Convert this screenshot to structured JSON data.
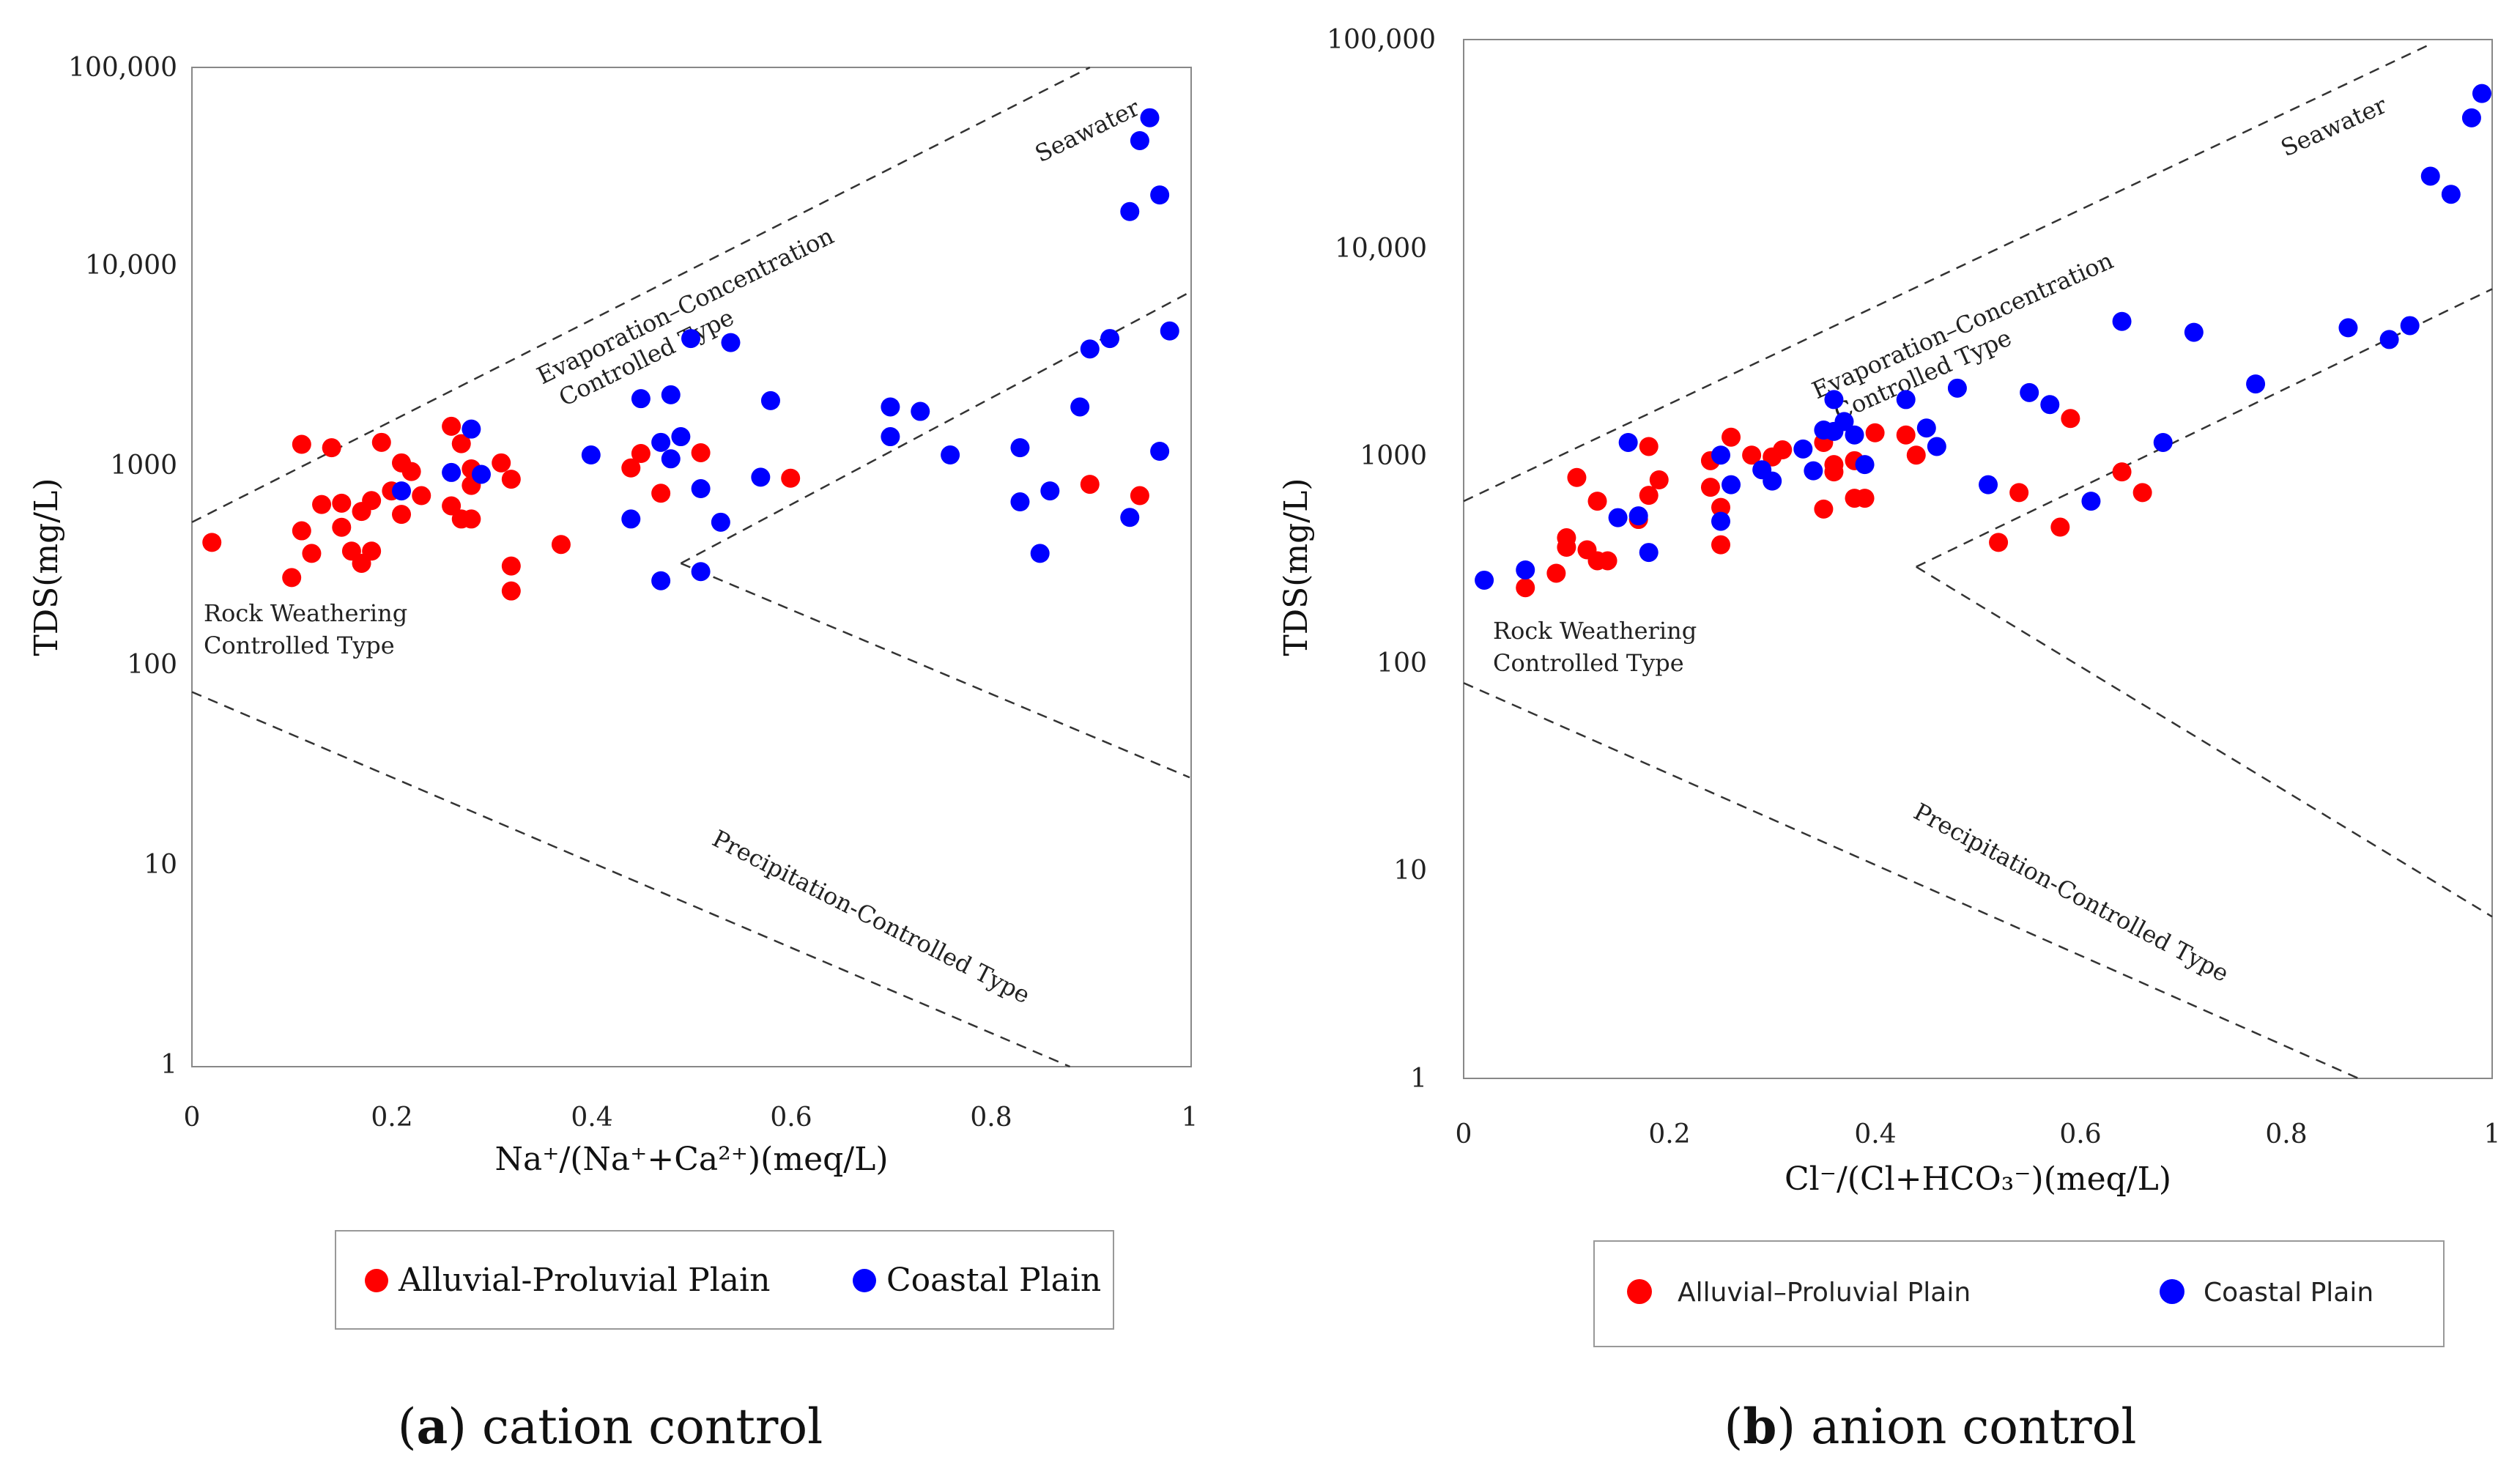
{
  "chart_data": [
    {
      "type": "scatter",
      "title": "cation control",
      "caption": {
        "letter": "a",
        "text": " cation control"
      },
      "xlabel": "Na⁺/(Na⁺+Ca²⁺)(meq/L)",
      "ylabel": "TDS(mg/L)",
      "xlim": [
        0,
        1
      ],
      "ylim": [
        1,
        100000
      ],
      "yscale": "log",
      "grid": false,
      "x_ticks": [
        "0",
        "0.2",
        "0.4",
        "0.6",
        "0.8",
        "1"
      ],
      "y_ticks": [
        "1",
        "10",
        "100",
        "1000",
        "10,000",
        "100,000"
      ],
      "annotations": [
        "Seawater",
        "Evaporation–Concentration",
        "Controlled Type",
        "Rock Weathering",
        "Controlled Type",
        "Precipitation-Controlled Type"
      ],
      "legend": {
        "style": "serif",
        "entries": [
          "Alluvial-Proluvial Plain",
          "Coastal Plain"
        ]
      },
      "boundaries": [
        {
          "name": "evaporation-upper",
          "from": [
            0,
            530
          ],
          "to": [
            0.9,
            100000
          ]
        },
        {
          "name": "evaporation-lower",
          "from": [
            0.49,
            330
          ],
          "to": [
            1,
            7500
          ]
        },
        {
          "name": "rock-lower",
          "from": [
            0,
            75
          ],
          "to": [
            0.88,
            1
          ]
        },
        {
          "name": "precipitation-upper",
          "from": [
            0.49,
            330
          ],
          "to": [
            1,
            28
          ]
        }
      ],
      "series": [
        {
          "name": "Alluvial-Proluvial Plain",
          "color": "#ff0000",
          "points": [
            [
              0.02,
              420
            ],
            [
              0.1,
              280
            ],
            [
              0.11,
              480
            ],
            [
              0.12,
              370
            ],
            [
              0.13,
              650
            ],
            [
              0.14,
              1250
            ],
            [
              0.15,
              660
            ],
            [
              0.15,
              500
            ],
            [
              0.16,
              380
            ],
            [
              0.17,
              330
            ],
            [
              0.17,
              600
            ],
            [
              0.18,
              380
            ],
            [
              0.18,
              680
            ],
            [
              0.19,
              1330
            ],
            [
              0.2,
              760
            ],
            [
              0.21,
              1050
            ],
            [
              0.21,
              580
            ],
            [
              0.22,
              950
            ],
            [
              0.23,
              720
            ],
            [
              0.26,
              1600
            ],
            [
              0.26,
              640
            ],
            [
              0.27,
              550
            ],
            [
              0.27,
              1310
            ],
            [
              0.28,
              980
            ],
            [
              0.28,
              810
            ],
            [
              0.28,
              550
            ],
            [
              0.31,
              1050
            ],
            [
              0.32,
              870
            ],
            [
              0.32,
              320
            ],
            [
              0.32,
              240
            ],
            [
              0.37,
              410
            ],
            [
              0.44,
              990
            ],
            [
              0.45,
              1170
            ],
            [
              0.47,
              740
            ],
            [
              0.51,
              1180
            ],
            [
              0.6,
              880
            ],
            [
              0.9,
              820
            ],
            [
              0.95,
              720
            ],
            [
              0.11,
              1300
            ]
          ]
        },
        {
          "name": "Coastal Plain",
          "color": "#0000ff",
          "points": [
            [
              0.21,
              760
            ],
            [
              0.26,
              940
            ],
            [
              0.28,
              1550
            ],
            [
              0.29,
              920
            ],
            [
              0.4,
              1150
            ],
            [
              0.44,
              550
            ],
            [
              0.45,
              2200
            ],
            [
              0.47,
              270
            ],
            [
              0.47,
              1330
            ],
            [
              0.48,
              1100
            ],
            [
              0.48,
              2300
            ],
            [
              0.49,
              1420
            ],
            [
              0.5,
              4400
            ],
            [
              0.51,
              780
            ],
            [
              0.51,
              300
            ],
            [
              0.53,
              530
            ],
            [
              0.54,
              4200
            ],
            [
              0.57,
              890
            ],
            [
              0.58,
              2150
            ],
            [
              0.7,
              1420
            ],
            [
              0.7,
              2000
            ],
            [
              0.73,
              1900
            ],
            [
              0.76,
              1150
            ],
            [
              0.83,
              1250
            ],
            [
              0.83,
              670
            ],
            [
              0.85,
              370
            ],
            [
              0.86,
              760
            ],
            [
              0.89,
              2000
            ],
            [
              0.9,
              3900
            ],
            [
              0.92,
              4400
            ],
            [
              0.94,
              19000
            ],
            [
              0.94,
              560
            ],
            [
              0.95,
              43000
            ],
            [
              0.96,
              56000
            ],
            [
              0.97,
              23000
            ],
            [
              0.97,
              1200
            ],
            [
              0.98,
              4800
            ]
          ]
        }
      ]
    },
    {
      "type": "scatter",
      "title": "anion control",
      "caption": {
        "letter": "b",
        "text": " anion control"
      },
      "xlabel": "Cl⁻/(Cl+HCO₃⁻)(meq/L)",
      "ylabel": "TDS(mg/L)",
      "xlim": [
        0,
        1
      ],
      "ylim": [
        1,
        100000
      ],
      "yscale": "log",
      "grid": false,
      "x_ticks": [
        "0",
        "0.2",
        "0.4",
        "0.6",
        "0.8",
        "1"
      ],
      "y_ticks": [
        "1",
        "10",
        "100",
        "1000",
        "10,000",
        "100,000"
      ],
      "annotations": [
        "Seawater",
        "Evaporation–Concentration",
        "Controlled Type",
        "Rock Weathering",
        "Controlled Type",
        "Precipitation-Controlled Type"
      ],
      "legend": {
        "style": "sans",
        "entries": [
          "Alluvial–Proluvial Plain",
          "Coastal Plain"
        ]
      },
      "boundaries": [
        {
          "name": "evaporation-upper",
          "from": [
            0,
            600
          ],
          "to": [
            0.94,
            95000
          ]
        },
        {
          "name": "evaporation-lower",
          "from": [
            0.44,
            290
          ],
          "to": [
            1,
            6300
          ]
        },
        {
          "name": "rock-lower",
          "from": [
            0,
            80
          ],
          "to": [
            0.87,
            1
          ]
        },
        {
          "name": "precipitation-upper",
          "from": [
            0.44,
            290
          ],
          "to": [
            1,
            6
          ]
        }
      ],
      "series": [
        {
          "name": "Alluvial–Proluvial Plain",
          "color": "#ff0000",
          "points": [
            [
              0.06,
              230
            ],
            [
              0.09,
              270
            ],
            [
              0.1,
              360
            ],
            [
              0.1,
              400
            ],
            [
              0.11,
              780
            ],
            [
              0.12,
              350
            ],
            [
              0.13,
              310
            ],
            [
              0.13,
              600
            ],
            [
              0.14,
              310
            ],
            [
              0.17,
              490
            ],
            [
              0.18,
              640
            ],
            [
              0.18,
              1100
            ],
            [
              0.19,
              760
            ],
            [
              0.24,
              700
            ],
            [
              0.24,
              940
            ],
            [
              0.25,
              560
            ],
            [
              0.25,
              370
            ],
            [
              0.26,
              1220
            ],
            [
              0.28,
              1000
            ],
            [
              0.3,
              980
            ],
            [
              0.31,
              1060
            ],
            [
              0.35,
              550
            ],
            [
              0.35,
              1150
            ],
            [
              0.36,
              830
            ],
            [
              0.36,
              900
            ],
            [
              0.38,
              620
            ],
            [
              0.38,
              940
            ],
            [
              0.39,
              620
            ],
            [
              0.4,
              1280
            ],
            [
              0.43,
              1250
            ],
            [
              0.44,
              1000
            ],
            [
              0.52,
              380
            ],
            [
              0.54,
              660
            ],
            [
              0.58,
              450
            ],
            [
              0.59,
              1500
            ],
            [
              0.64,
              830
            ],
            [
              0.66,
              660
            ]
          ]
        },
        {
          "name": "Coastal Plain",
          "color": "#0000ff",
          "points": [
            [
              0.02,
              250
            ],
            [
              0.06,
              280
            ],
            [
              0.15,
              500
            ],
            [
              0.16,
              1150
            ],
            [
              0.17,
              510
            ],
            [
              0.18,
              340
            ],
            [
              0.25,
              480
            ],
            [
              0.25,
              1000
            ],
            [
              0.26,
              720
            ],
            [
              0.29,
              850
            ],
            [
              0.3,
              750
            ],
            [
              0.33,
              1070
            ],
            [
              0.34,
              840
            ],
            [
              0.35,
              1320
            ],
            [
              0.36,
              1850
            ],
            [
              0.36,
              1300
            ],
            [
              0.37,
              1450
            ],
            [
              0.38,
              1250
            ],
            [
              0.39,
              900
            ],
            [
              0.43,
              1850
            ],
            [
              0.45,
              1350
            ],
            [
              0.46,
              1100
            ],
            [
              0.48,
              2100
            ],
            [
              0.51,
              720
            ],
            [
              0.55,
              2000
            ],
            [
              0.57,
              1750
            ],
            [
              0.61,
              600
            ],
            [
              0.64,
              4400
            ],
            [
              0.68,
              1150
            ],
            [
              0.71,
              3900
            ],
            [
              0.77,
              2200
            ],
            [
              0.86,
              4100
            ],
            [
              0.9,
              3600
            ],
            [
              0.92,
              4200
            ],
            [
              0.94,
              22000
            ],
            [
              0.96,
              18000
            ],
            [
              0.98,
              42000
            ],
            [
              0.99,
              55000
            ]
          ]
        }
      ]
    }
  ]
}
